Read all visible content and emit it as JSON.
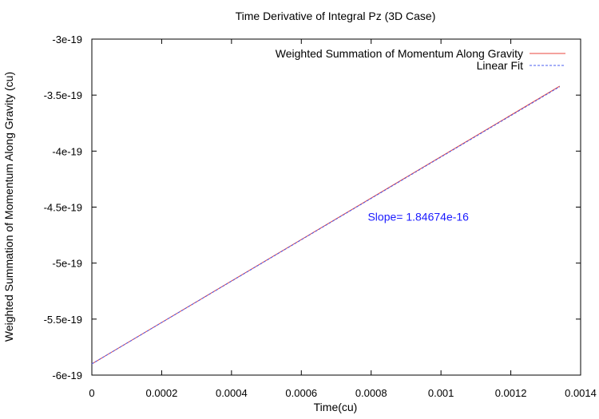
{
  "chart_data": {
    "type": "line",
    "title": "Time Derivative of Integral Pz (3D Case)",
    "xlabel": "Time(cu)",
    "ylabel": "Weighted Summation of Momentum Along Gravity (cu)",
    "xlim": [
      0,
      0.0014
    ],
    "ylim": [
      -6e-19,
      -3e-19
    ],
    "x_ticks": [
      0,
      0.0002,
      0.0004,
      0.0006,
      0.0008,
      0.001,
      0.0012,
      0.0014
    ],
    "x_tick_labels": [
      "0",
      "0.0002",
      "0.0004",
      "0.0006",
      "0.0008",
      "0.001",
      "0.0012",
      "0.0014"
    ],
    "y_ticks": [
      -6e-19,
      -5.5e-19,
      -5e-19,
      -4.5e-19,
      -4e-19,
      -3.5e-19,
      -3e-19
    ],
    "y_tick_labels": [
      "-6e-19",
      "-5.5e-19",
      "-5e-19",
      "-4.5e-19",
      "-4e-19",
      "-3.5e-19",
      "-3e-19"
    ],
    "grid": false,
    "legend_position": "top-right",
    "series": [
      {
        "name": "Weighted Summation of Momentum Along Gravity",
        "color": "#e8453c",
        "style": "solid",
        "x": [
          0,
          0.000335,
          0.00067,
          0.001005,
          0.00134
        ],
        "y": [
          -5.9e-19,
          -5.28e-19,
          -4.66e-19,
          -4.04e-19,
          -3.42e-19
        ]
      },
      {
        "name": "Linear Fit",
        "color": "#4a5cf0",
        "style": "dashed",
        "x": [
          0,
          0.00134
        ],
        "y": [
          -5.9e-19,
          -3.425e-19
        ]
      }
    ],
    "annotations": [
      {
        "text": "Slope= 1.84674e-16",
        "x": 0.000935,
        "y": -4.62e-19,
        "color": "#1a1aff"
      }
    ]
  }
}
